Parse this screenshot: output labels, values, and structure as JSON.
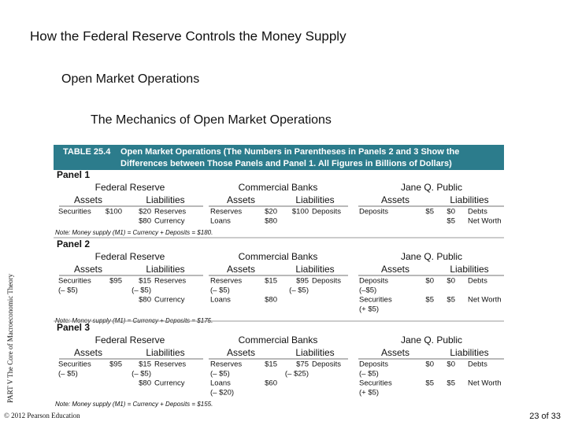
{
  "header": {
    "title": "How the Federal Reserve Controls the Money Supply",
    "subtitle": "Open Market Operations",
    "section": "The Mechanics of Open Market Operations"
  },
  "table": {
    "caption_label": "TABLE 25.4",
    "caption_line1": "Open Market Operations (The Numbers in Parentheses in Panels 2 and 3 Show the",
    "caption_line2": "Differences between Those Panels and Panel 1. All Figures in Billions of Dollars)",
    "panels": [
      {
        "title": "Panel 1",
        "entities": [
          {
            "name": "Federal Reserve",
            "assets": "Assets",
            "liabilities": "Liabilities"
          },
          {
            "name": "Commercial Banks",
            "assets": "Assets",
            "liabilities": "Liabilities"
          },
          {
            "name": "Jane Q. Public",
            "assets": "Assets",
            "liabilities": "Liabilities"
          }
        ],
        "rows": [
          [
            "Securities",
            "$100",
            "$20",
            "Reserves",
            "Reserves",
            "$20",
            "$100",
            "Deposits",
            "Deposits",
            "$5",
            "$0",
            "Debts"
          ],
          [
            null,
            null,
            "$80",
            "Currency",
            "Loans",
            "$80",
            null,
            null,
            null,
            null,
            "$5",
            "Net Worth"
          ]
        ],
        "note": "Note: Money supply (M1) = Currency + Deposits = $180."
      },
      {
        "title": "Panel 2",
        "entities": [
          {
            "name": "Federal Reserve",
            "assets": "Assets",
            "liabilities": "Liabilities"
          },
          {
            "name": "Commercial Banks",
            "assets": "Assets",
            "liabilities": "Liabilities"
          },
          {
            "name": "Jane Q. Public",
            "assets": "Assets",
            "liabilities": "Liabilities"
          }
        ],
        "rows": [
          [
            "Securities",
            "$95",
            "$15",
            "Reserves",
            "Reserves",
            "$15",
            "$95",
            "Deposits",
            "Deposits",
            "$0",
            "$0",
            "Debts"
          ],
          [
            "(– $5)",
            null,
            "(– $5)",
            null,
            "(– $5)",
            null,
            "(– $5)",
            null,
            "(–$5)",
            null,
            null,
            null
          ],
          [
            null,
            null,
            "$80",
            "Currency",
            "Loans",
            "$80",
            null,
            null,
            "Securities",
            "$5",
            "$5",
            "Net Worth"
          ],
          [
            null,
            null,
            null,
            null,
            null,
            null,
            null,
            null,
            "(+ $5)",
            null,
            null,
            null
          ]
        ],
        "note": "Note: Money supply (M1) = Currency + Deposits = $175."
      },
      {
        "title": "Panel 3",
        "entities": [
          {
            "name": "Federal Reserve",
            "assets": "Assets",
            "liabilities": "Liabilities"
          },
          {
            "name": "Commercial Banks",
            "assets": "Assets",
            "liabilities": "Liabilities"
          },
          {
            "name": "Jane Q. Public",
            "assets": "Assets",
            "liabilities": "Liabilities"
          }
        ],
        "rows": [
          [
            "Securities",
            "$95",
            "$15",
            "Reserves",
            "Reserves",
            "$15",
            "$75",
            "Deposits",
            "Deposits",
            "$0",
            "$0",
            "Debts"
          ],
          [
            "(– $5)",
            null,
            "(– $5)",
            null,
            "(– $5)",
            null,
            "(– $25)",
            null,
            "(– $5)",
            null,
            null,
            null
          ],
          [
            null,
            null,
            "$80",
            "Currency",
            "Loans",
            "$60",
            null,
            null,
            "Securities",
            "$5",
            "$5",
            "Net Worth"
          ],
          [
            null,
            null,
            null,
            null,
            "(– $20)",
            null,
            null,
            null,
            "(+ $5)",
            null,
            null,
            null
          ]
        ],
        "note": "Note: Money supply (M1) = Currency + Deposits = $155."
      }
    ]
  },
  "side_label": "PART V  The Core of Macroeconomic Theory",
  "footer": {
    "copyright": "© 2012 Pearson Education",
    "page": "23 of 33"
  }
}
